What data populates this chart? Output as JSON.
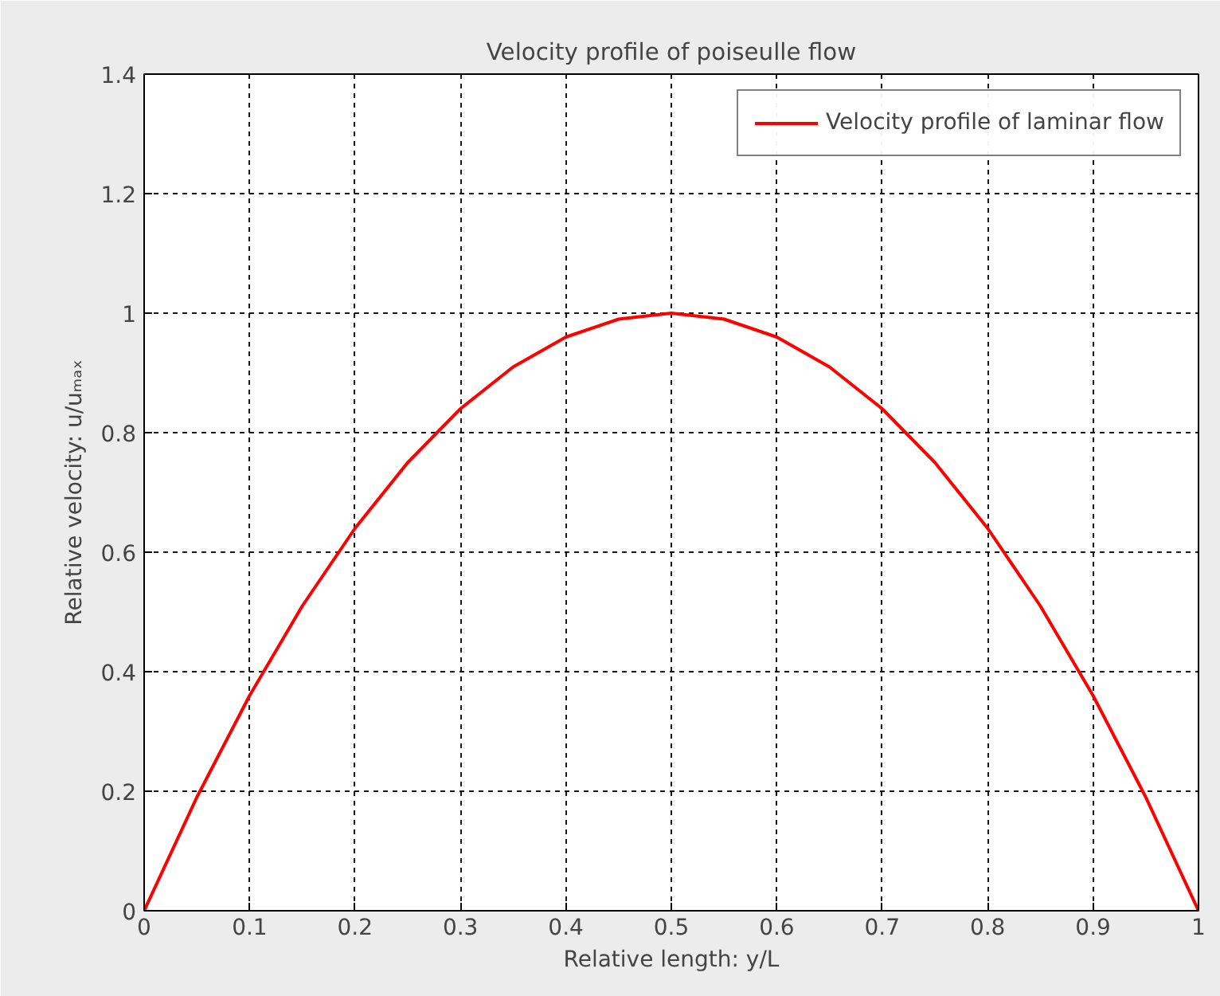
{
  "chart_data": {
    "type": "line",
    "title": "Velocity profile of poiseulle flow",
    "xlabel": "Relative length: y/L",
    "ylabel": "Relative velocity: u/uₘₐₓ",
    "x": [
      0,
      0.05,
      0.1,
      0.15,
      0.2,
      0.25,
      0.3,
      0.35,
      0.4,
      0.45,
      0.5,
      0.55,
      0.6,
      0.65,
      0.7,
      0.75,
      0.8,
      0.85,
      0.9,
      0.95,
      1
    ],
    "series": [
      {
        "name": "Velocity profile of laminar flow",
        "color": "#ff0000",
        "values": [
          0,
          0.19,
          0.36,
          0.51,
          0.64,
          0.75,
          0.84,
          0.91,
          0.96,
          0.99,
          1.0,
          0.99,
          0.96,
          0.91,
          0.84,
          0.75,
          0.64,
          0.51,
          0.36,
          0.19,
          0
        ]
      }
    ],
    "xlim": [
      0,
      1
    ],
    "ylim": [
      0,
      1.4
    ],
    "xticks": [
      0,
      0.1,
      0.2,
      0.3,
      0.4,
      0.5,
      0.6,
      0.7,
      0.8,
      0.9,
      1
    ],
    "yticks": [
      0,
      0.2,
      0.4,
      0.6,
      0.8,
      1,
      1.2,
      1.4
    ],
    "grid": true,
    "legend": "top right",
    "marker": "none",
    "line_style": "solid"
  }
}
